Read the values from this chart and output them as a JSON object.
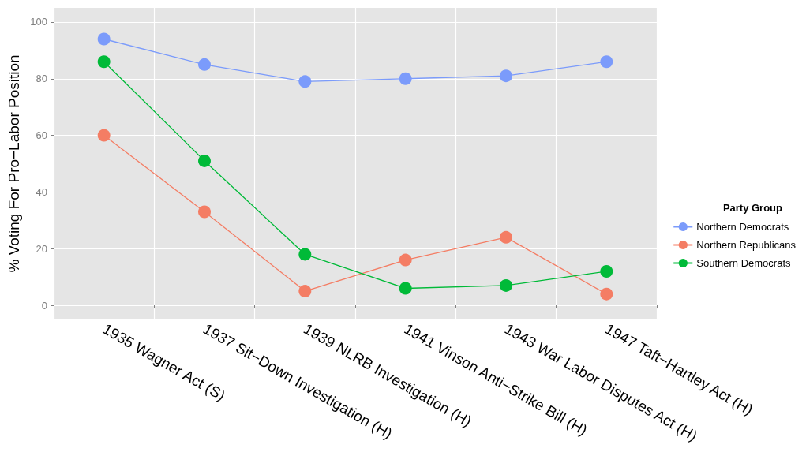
{
  "chart_data": {
    "type": "line",
    "ylabel": "% Voting For Pro−Labor Position",
    "legend_title": "Party Group",
    "categories": [
      "1935 Wagner Act (S)",
      "1937 Sit−Down Investigation (H)",
      "1939 NLRB Investigation (H)",
      "1941 Vinson Anti−Strike Bill (H)",
      "1943 War Labor Disputes Act (H)",
      "1947 Taft−Hartley Act (H)"
    ],
    "series": [
      {
        "name": "Northern Democrats",
        "color": "#7b9bfb",
        "values": [
          94,
          85,
          79,
          80,
          81,
          86
        ]
      },
      {
        "name": "Northern Republicans",
        "color": "#f47d64",
        "values": [
          60,
          33,
          5,
          16,
          24,
          4
        ]
      },
      {
        "name": "Southern Democrats",
        "color": "#00ba38",
        "values": [
          86,
          51,
          18,
          6,
          7,
          12
        ]
      }
    ],
    "ylim": [
      -5,
      105
    ],
    "yticks": [
      0,
      20,
      40,
      60,
      80,
      100
    ],
    "grid": true,
    "legend": "right",
    "marker": "circle",
    "line_style": "solid"
  }
}
